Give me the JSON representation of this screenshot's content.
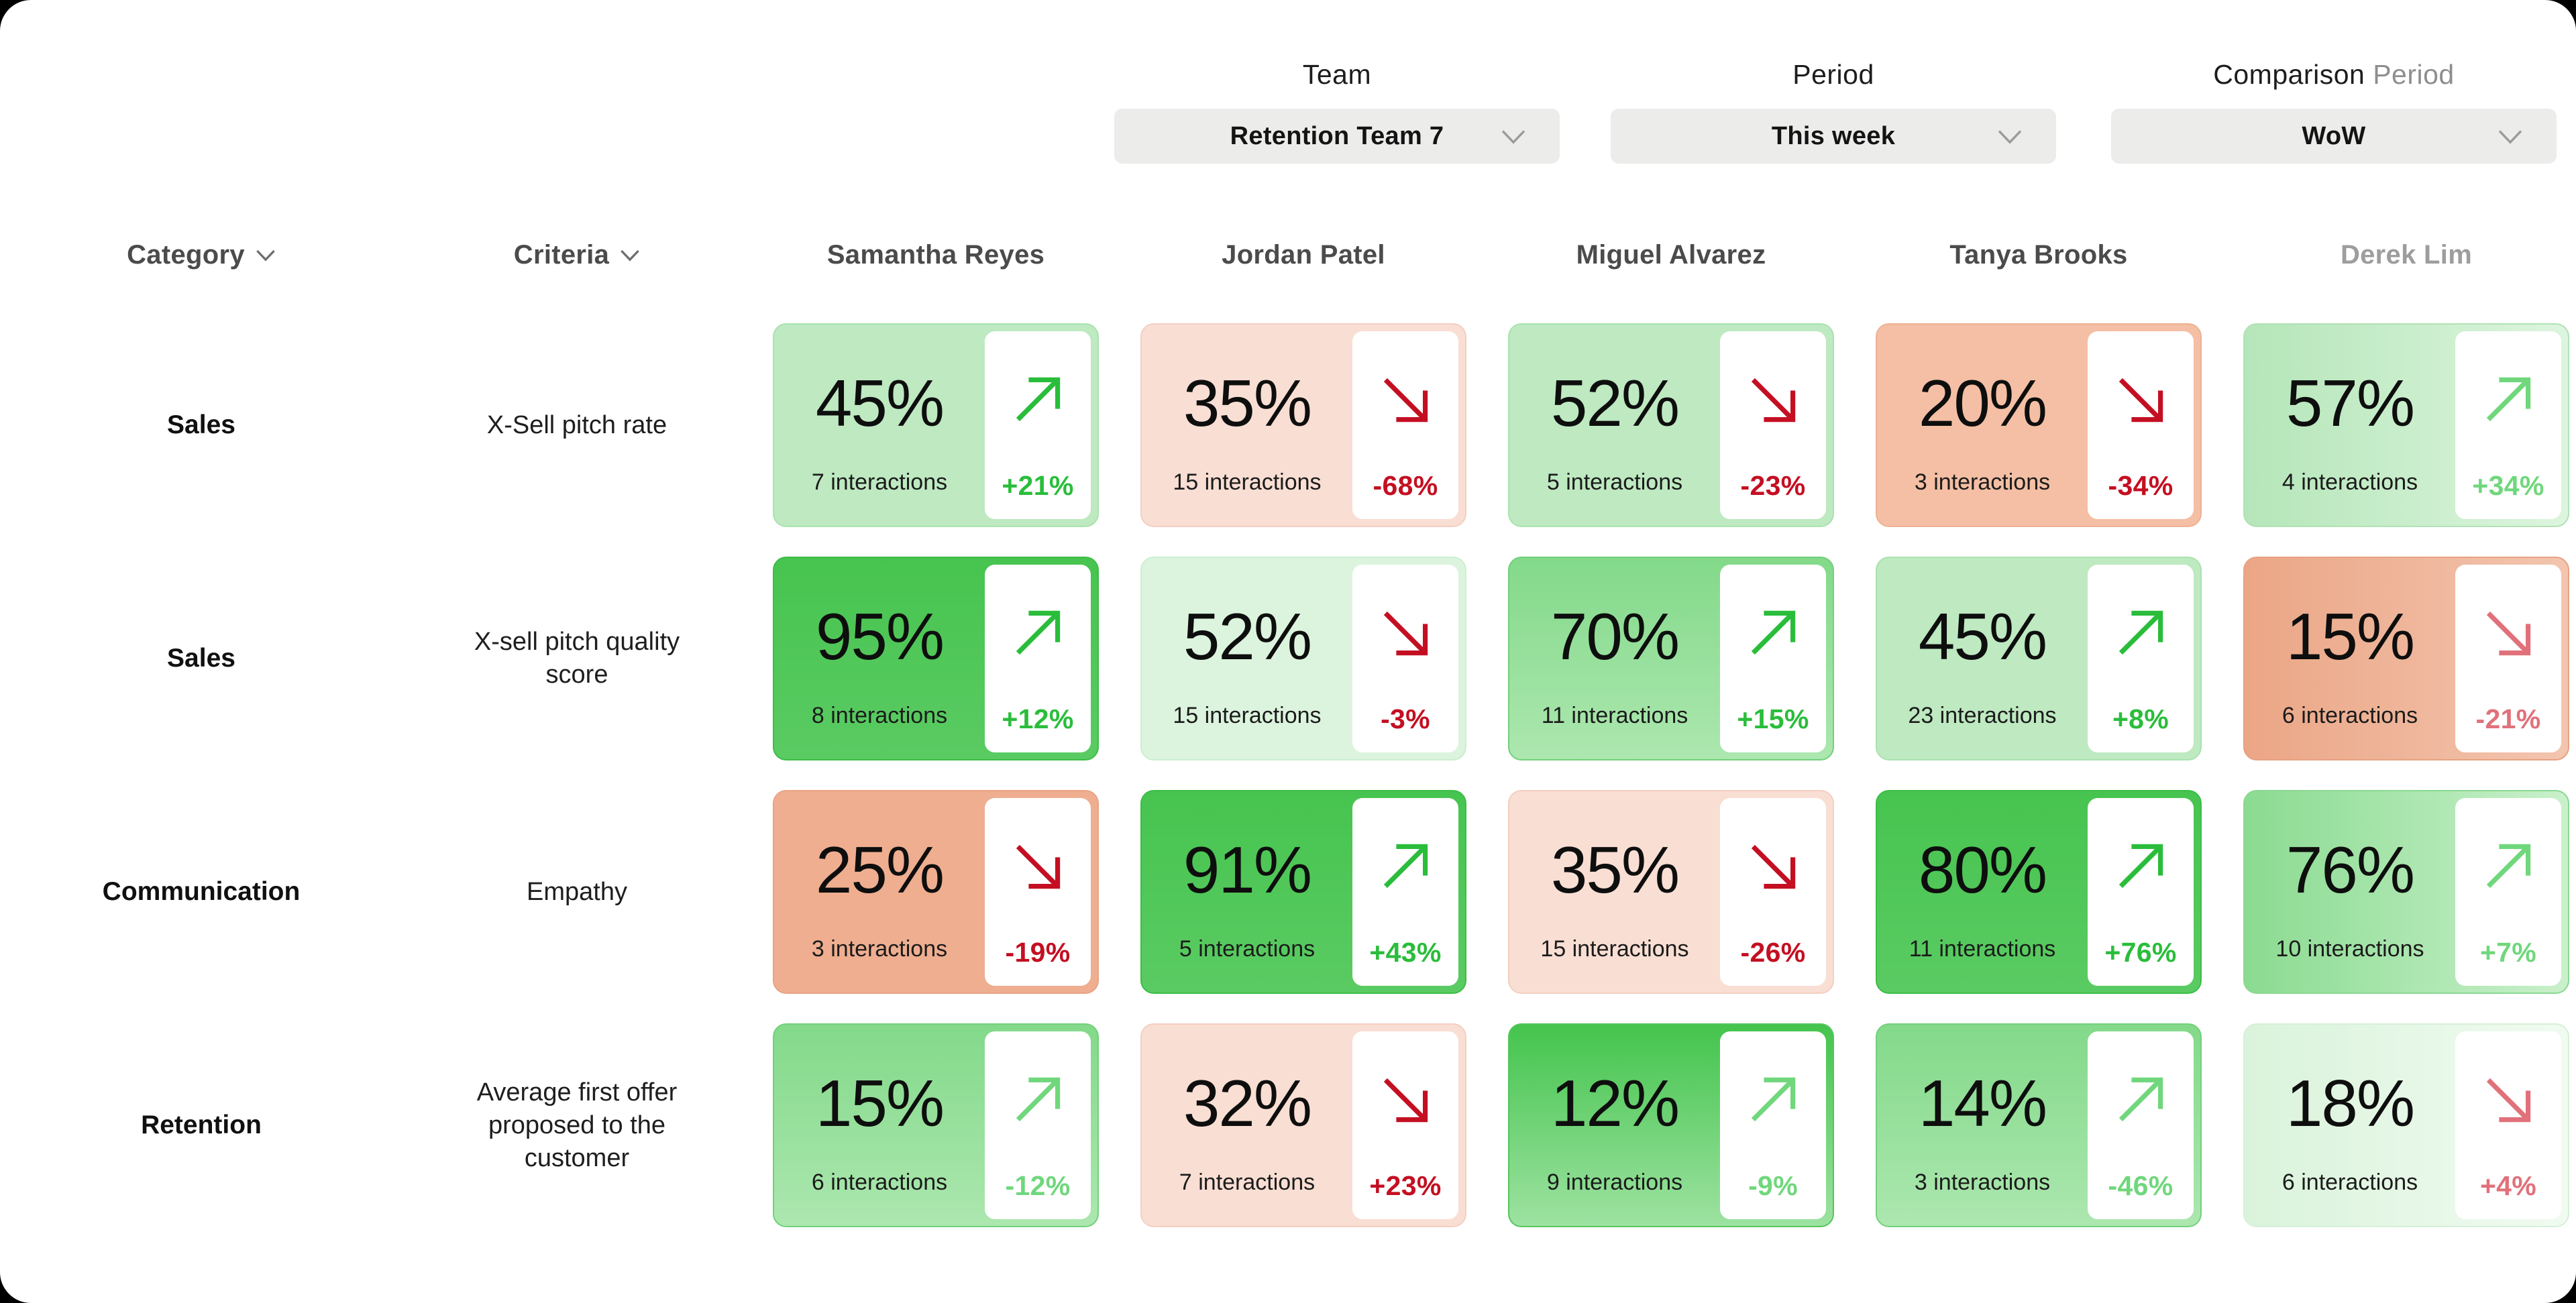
{
  "filters": [
    {
      "key": "team",
      "label": "Team",
      "label_muted": "",
      "value": "Retention Team 7"
    },
    {
      "key": "period",
      "label": "Period",
      "label_muted": "",
      "value": "This week"
    },
    {
      "key": "comparison-period",
      "label": "Comparison",
      "label_muted": " Period",
      "value": "WoW"
    }
  ],
  "table": {
    "category_header": "Category",
    "criteria_header": "Criteria",
    "people": [
      {
        "name": "Samantha Reyes"
      },
      {
        "name": "Jordan Patel"
      },
      {
        "name": "Miguel Alvarez"
      },
      {
        "name": "Tanya Brooks"
      },
      {
        "name": "Derek Lim",
        "muted": true
      }
    ],
    "rows": [
      {
        "category": "Sales",
        "criteria": "X-Sell pitch rate",
        "cells": [
          {
            "value": "45%",
            "interactions": "7 interactions",
            "trend": "+21%",
            "direction": "up",
            "tone": "g200",
            "trend_tone": "green"
          },
          {
            "value": "35%",
            "interactions": "15 interactions",
            "trend": "-68%",
            "direction": "down",
            "tone": "peach",
            "trend_tone": "red"
          },
          {
            "value": "52%",
            "interactions": "5 interactions",
            "trend": "-23%",
            "direction": "down",
            "tone": "g200",
            "trend_tone": "red"
          },
          {
            "value": "20%",
            "interactions": "3 interactions",
            "trend": "-34%",
            "direction": "down",
            "tone": "apricot",
            "trend_tone": "red"
          },
          {
            "value": "57%",
            "interactions": "4 interactions",
            "trend": "+34%",
            "direction": "up",
            "tone": "g200d",
            "trend_tone": "green2"
          }
        ]
      },
      {
        "category": "Sales",
        "criteria": "X-sell pitch quality\nscore",
        "cells": [
          {
            "value": "95%",
            "interactions": "8 interactions",
            "trend": "+12%",
            "direction": "up",
            "tone": "g500",
            "trend_tone": "green"
          },
          {
            "value": "52%",
            "interactions": "15 interactions",
            "trend": "-3%",
            "direction": "down",
            "tone": "g100",
            "trend_tone": "red"
          },
          {
            "value": "70%",
            "interactions": "11 interactions",
            "trend": "+15%",
            "direction": "up",
            "tone": "g300",
            "trend_tone": "green"
          },
          {
            "value": "45%",
            "interactions": "23 interactions",
            "trend": "+8%",
            "direction": "up",
            "tone": "g200",
            "trend_tone": "green"
          },
          {
            "value": "15%",
            "interactions": "6 interactions",
            "trend": "-21%",
            "direction": "down",
            "tone": "oranged",
            "trend_tone": "red2"
          }
        ]
      },
      {
        "category": "Communication",
        "criteria": "Empathy",
        "cells": [
          {
            "value": "25%",
            "interactions": "3 interactions",
            "trend": "-19%",
            "direction": "down",
            "tone": "orange",
            "trend_tone": "red"
          },
          {
            "value": "91%",
            "interactions": "5 interactions",
            "trend": "+43%",
            "direction": "up",
            "tone": "g500",
            "trend_tone": "green"
          },
          {
            "value": "35%",
            "interactions": "15 interactions",
            "trend": "-26%",
            "direction": "down",
            "tone": "peach",
            "trend_tone": "red"
          },
          {
            "value": "80%",
            "interactions": "11 interactions",
            "trend": "+76%",
            "direction": "up",
            "tone": "g500",
            "trend_tone": "green"
          },
          {
            "value": "76%",
            "interactions": "10 interactions",
            "trend": "+7%",
            "direction": "up",
            "tone": "g300d",
            "trend_tone": "green2"
          }
        ]
      },
      {
        "category": "Retention",
        "criteria": "Average first offer\nproposed to the\ncustomer",
        "cells": [
          {
            "value": "15%",
            "interactions": "6 interactions",
            "trend": "-12%",
            "direction": "up",
            "tone": "g300",
            "trend_tone": "green2"
          },
          {
            "value": "32%",
            "interactions": "7 interactions",
            "trend": "+23%",
            "direction": "down",
            "tone": "peach",
            "trend_tone": "red"
          },
          {
            "value": "12%",
            "interactions": "9 interactions",
            "trend": "-9%",
            "direction": "up",
            "tone": "g500f",
            "trend_tone": "green2"
          },
          {
            "value": "14%",
            "interactions": "3 interactions",
            "trend": "-46%",
            "direction": "up",
            "tone": "g300",
            "trend_tone": "green2"
          },
          {
            "value": "18%",
            "interactions": "6 interactions",
            "trend": "+4%",
            "direction": "down",
            "tone": "g100d",
            "trend_tone": "red2"
          }
        ]
      }
    ]
  },
  "palette": {
    "tones": {
      "g500": {
        "bg": "linear-gradient(180deg,#47c450,#5acb62)",
        "border": "#3cbd46"
      },
      "g500f": {
        "bg": "linear-gradient(180deg,#44c44d,#9de2a1)",
        "border": "#55c55d"
      },
      "g300": {
        "bg": "linear-gradient(180deg,#83d98a,#ace7af)",
        "border": "#73d07b"
      },
      "g300d": {
        "bg": "linear-gradient(90deg,#8bdb91,#c9f0cb)",
        "border": "#8bd892"
      },
      "g200": {
        "bg": "#bee9c1",
        "border": "#a9e3af"
      },
      "g200d": {
        "bg": "linear-gradient(90deg,#b5e6b9,#ddf5de)",
        "border": "#b1e2b5"
      },
      "g100": {
        "bg": "#dcf4dd",
        "border": "#cceed0"
      },
      "g100d": {
        "bg": "linear-gradient(90deg,#daf3db,#f1fbf1)",
        "border": "#d6f0d8"
      },
      "peach": {
        "bg": "#f9ded3",
        "border": "#f4cfc2"
      },
      "apricot": {
        "bg": "#f4bfa4",
        "border": "#eeb194"
      },
      "orange": {
        "bg": "#efae90",
        "border": "#e9a384"
      },
      "oranged": {
        "bg": "linear-gradient(90deg,#eba686,#f3c5af)",
        "border": "#e7a283"
      }
    },
    "trend": {
      "green": "#2abd3b",
      "green2": "#70d77c",
      "red": "#c40f22",
      "red2": "#e0717a"
    }
  }
}
